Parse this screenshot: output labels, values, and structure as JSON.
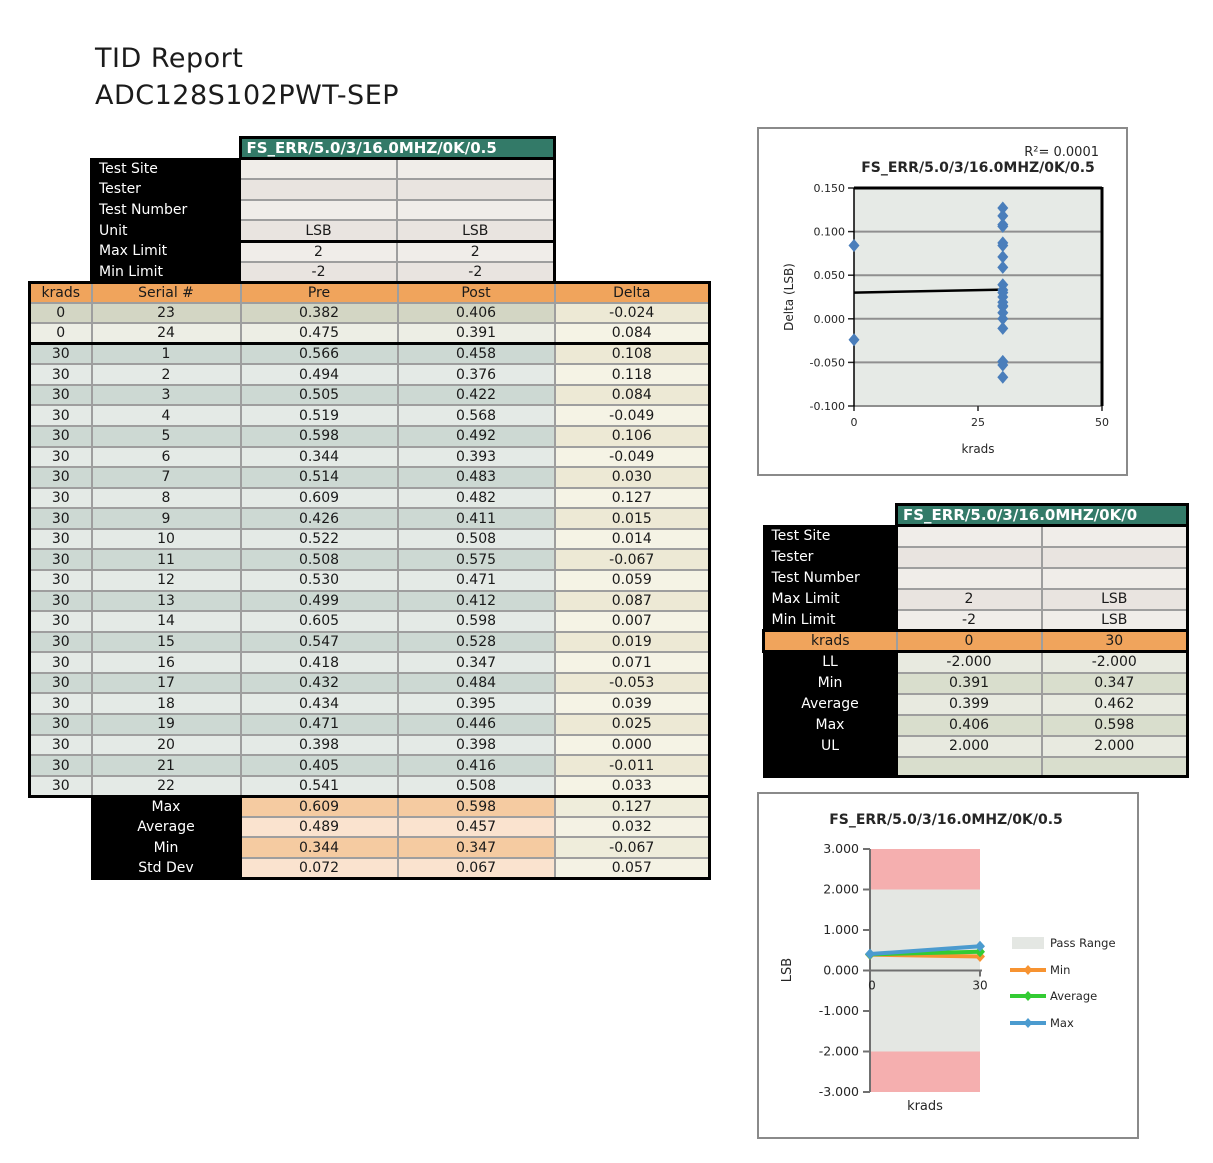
{
  "page": {
    "title_line1": "TID Report",
    "title_line2": "ADC128S102PWT-SEP"
  },
  "colors": {
    "teal_header": "#337A68",
    "orange_header": "#F0A45C",
    "row_dark_0": "#D3D6C4",
    "row_light_0": "#EDEEE5",
    "row_dark_30": "#CDD9D3",
    "row_light_30": "#E4EAE6",
    "delta_dark": "#EDE9D5",
    "delta_light": "#F5F3E5",
    "peach_dark": "#F5CBA1",
    "peach_light": "#FAE3CF",
    "sum_delta_dark": "#EFEDDB",
    "sum_delta_light": "#F4F2E4",
    "limit_light": "#F0EDE9",
    "limit_dark": "#E9E4E0",
    "stats_light": "#E8EAE0",
    "stats_dark": "#D9DECD",
    "scatter_point": "#4A7EBB",
    "plot_bg": "#E6EAE6",
    "pass_gray": "#E4E7E3",
    "fail_pink": "#F5AFAF",
    "min_color": "#F79331",
    "avg_color": "#33CB33",
    "max_color": "#4B9BCF",
    "trendline": "#000000"
  },
  "limits_table": {
    "header": "FS_ERR/5.0/3/16.0MHZ/0K/0.5",
    "rows": [
      {
        "label": "Test Site",
        "v1": "",
        "v2": ""
      },
      {
        "label": "Tester",
        "v1": "",
        "v2": ""
      },
      {
        "label": "Test Number",
        "v1": "",
        "v2": ""
      },
      {
        "label": "Unit",
        "v1": "LSB",
        "v2": "LSB"
      },
      {
        "label": "Max Limit",
        "v1": "2",
        "v2": "2"
      },
      {
        "label": "Min Limit",
        "v1": "-2",
        "v2": "-2"
      }
    ]
  },
  "data_table": {
    "columns": [
      "krads",
      "Serial #",
      "Pre",
      "Post",
      "Delta"
    ],
    "rows": [
      [
        0,
        23,
        "0.382",
        "0.406",
        "-0.024"
      ],
      [
        0,
        24,
        "0.475",
        "0.391",
        "0.084"
      ],
      [
        30,
        1,
        "0.566",
        "0.458",
        "0.108"
      ],
      [
        30,
        2,
        "0.494",
        "0.376",
        "0.118"
      ],
      [
        30,
        3,
        "0.505",
        "0.422",
        "0.084"
      ],
      [
        30,
        4,
        "0.519",
        "0.568",
        "-0.049"
      ],
      [
        30,
        5,
        "0.598",
        "0.492",
        "0.106"
      ],
      [
        30,
        6,
        "0.344",
        "0.393",
        "-0.049"
      ],
      [
        30,
        7,
        "0.514",
        "0.483",
        "0.030"
      ],
      [
        30,
        8,
        "0.609",
        "0.482",
        "0.127"
      ],
      [
        30,
        9,
        "0.426",
        "0.411",
        "0.015"
      ],
      [
        30,
        10,
        "0.522",
        "0.508",
        "0.014"
      ],
      [
        30,
        11,
        "0.508",
        "0.575",
        "-0.067"
      ],
      [
        30,
        12,
        "0.530",
        "0.471",
        "0.059"
      ],
      [
        30,
        13,
        "0.499",
        "0.412",
        "0.087"
      ],
      [
        30,
        14,
        "0.605",
        "0.598",
        "0.007"
      ],
      [
        30,
        15,
        "0.547",
        "0.528",
        "0.019"
      ],
      [
        30,
        16,
        "0.418",
        "0.347",
        "0.071"
      ],
      [
        30,
        17,
        "0.432",
        "0.484",
        "-0.053"
      ],
      [
        30,
        18,
        "0.434",
        "0.395",
        "0.039"
      ],
      [
        30,
        19,
        "0.471",
        "0.446",
        "0.025"
      ],
      [
        30,
        20,
        "0.398",
        "0.398",
        "0.000"
      ],
      [
        30,
        21,
        "0.405",
        "0.416",
        "-0.011"
      ],
      [
        30,
        22,
        "0.541",
        "0.508",
        "0.033"
      ]
    ],
    "summary": [
      [
        "Max",
        "0.609",
        "0.598",
        "0.127"
      ],
      [
        "Average",
        "0.489",
        "0.457",
        "0.032"
      ],
      [
        "Min",
        "0.344",
        "0.347",
        "-0.067"
      ],
      [
        "Std Dev",
        "0.072",
        "0.067",
        "0.057"
      ]
    ]
  },
  "stats_table": {
    "header": "FS_ERR/5.0/3/16.0MHZ/0K/0",
    "rows_top": [
      {
        "label": "Test Site",
        "v1": "",
        "v2": ""
      },
      {
        "label": "Tester",
        "v1": "",
        "v2": ""
      },
      {
        "label": "Test Number",
        "v1": "",
        "v2": ""
      },
      {
        "label": "Max Limit",
        "v1": "2",
        "v2": "LSB"
      },
      {
        "label": "Min Limit",
        "v1": "-2",
        "v2": "LSB"
      }
    ],
    "krads_row": {
      "label": "krads",
      "v1": "0",
      "v2": "30"
    },
    "rows_bottom": [
      {
        "label": "LL",
        "v1": "-2.000",
        "v2": "-2.000"
      },
      {
        "label": "Min",
        "v1": "0.391",
        "v2": "0.347"
      },
      {
        "label": "Average",
        "v1": "0.399",
        "v2": "0.462"
      },
      {
        "label": "Max",
        "v1": "0.406",
        "v2": "0.598"
      },
      {
        "label": "UL",
        "v1": "2.000",
        "v2": "2.000"
      },
      {
        "label": "",
        "v1": "",
        "v2": ""
      }
    ]
  },
  "chart_data": [
    {
      "type": "scatter",
      "title": "FS_ERR/5.0/3/16.0MHZ/0K/0.5",
      "annotation": "R²= 0.0001",
      "xlabel": "krads",
      "ylabel": "Delta (LSB)",
      "xlim": [
        0,
        50
      ],
      "xticks": [
        0,
        25,
        50
      ],
      "ylim": [
        -0.1,
        0.15
      ],
      "yticks": [
        0.15,
        0.1,
        0.05,
        0.0,
        -0.05,
        -0.1
      ],
      "grid": true,
      "points": [
        {
          "x": 0,
          "y": -0.024
        },
        {
          "x": 0,
          "y": 0.084
        },
        {
          "x": 30,
          "y": 0.108
        },
        {
          "x": 30,
          "y": 0.118
        },
        {
          "x": 30,
          "y": 0.084
        },
        {
          "x": 30,
          "y": -0.049
        },
        {
          "x": 30,
          "y": 0.106
        },
        {
          "x": 30,
          "y": -0.049
        },
        {
          "x": 30,
          "y": 0.03
        },
        {
          "x": 30,
          "y": 0.127
        },
        {
          "x": 30,
          "y": 0.015
        },
        {
          "x": 30,
          "y": 0.014
        },
        {
          "x": 30,
          "y": -0.067
        },
        {
          "x": 30,
          "y": 0.059
        },
        {
          "x": 30,
          "y": 0.087
        },
        {
          "x": 30,
          "y": 0.007
        },
        {
          "x": 30,
          "y": 0.019
        },
        {
          "x": 30,
          "y": 0.071
        },
        {
          "x": 30,
          "y": -0.053
        },
        {
          "x": 30,
          "y": 0.039
        },
        {
          "x": 30,
          "y": 0.025
        },
        {
          "x": 30,
          "y": 0.0
        },
        {
          "x": 30,
          "y": -0.011
        },
        {
          "x": 30,
          "y": 0.033
        }
      ],
      "trendline": {
        "x1": 0,
        "y1": 0.03,
        "x2": 30,
        "y2": 0.0335
      }
    },
    {
      "type": "line",
      "title": "FS_ERR/5.0/3/16.0MHZ/0K/0.5",
      "xlabel": "krads",
      "ylabel": "LSB",
      "x": [
        0,
        30
      ],
      "xticks": [
        0,
        30
      ],
      "ylim": [
        -3.0,
        3.0
      ],
      "yticks": [
        3.0,
        2.0,
        1.0,
        0.0,
        -1.0,
        -2.0,
        -3.0
      ],
      "pass_range": [
        -2.0,
        2.0
      ],
      "series": [
        {
          "name": "Min",
          "values": [
            0.391,
            0.347
          ]
        },
        {
          "name": "Average",
          "values": [
            0.399,
            0.462
          ]
        },
        {
          "name": "Max",
          "values": [
            0.406,
            0.598
          ]
        }
      ],
      "legend": [
        "Pass Range",
        "Min",
        "Average",
        "Max"
      ],
      "legend_position": "right"
    }
  ]
}
